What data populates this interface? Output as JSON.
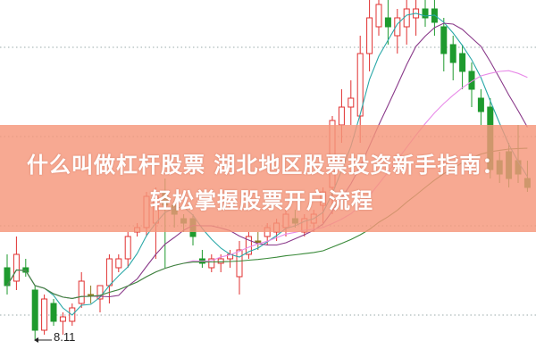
{
  "title_line1": "什么叫做杠杆股票 湖北地区股票投资新手指南：",
  "title_line2": "轻松掌握股票开户流程",
  "chart_data": {
    "type": "candlestick",
    "low_annotation": "8.11",
    "grid": "dotted horizontal",
    "colors": {
      "up": "#e03030",
      "down": "#1e9a2e",
      "flat": "#8a7a20",
      "banner": "#f5967a",
      "ma_lines": [
        "#2aa8a8",
        "#8a3a8a",
        "#e88ae8",
        "#3a8a3a"
      ]
    },
    "candles": [
      [
        8.91,
        8.71,
        9.06,
        8.61
      ],
      [
        8.76,
        9.06,
        9.26,
        8.66
      ],
      [
        8.91,
        8.86,
        9.01,
        8.81
      ],
      [
        8.66,
        8.21,
        8.71,
        8.11
      ],
      [
        8.21,
        8.56,
        8.61,
        8.16
      ],
      [
        8.51,
        8.31,
        8.56,
        8.26
      ],
      [
        8.31,
        8.36,
        8.41,
        8.16
      ],
      [
        8.31,
        8.46,
        8.51,
        8.26
      ],
      [
        8.51,
        8.76,
        8.86,
        8.46
      ],
      [
        8.61,
        8.61,
        8.71,
        8.51
      ],
      [
        8.56,
        8.71,
        8.71,
        8.41
      ],
      [
        8.71,
        9.01,
        9.06,
        8.51
      ],
      [
        8.91,
        9.01,
        9.06,
        8.86
      ],
      [
        9.01,
        9.26,
        9.31,
        8.91
      ],
      [
        9.31,
        9.36,
        9.41,
        9.26
      ],
      [
        9.36,
        9.71,
        9.76,
        9.26
      ],
      [
        9.41,
        9.71,
        9.81,
        9.01
      ],
      [
        9.76,
        9.61,
        9.91,
        8.91
      ],
      [
        9.61,
        9.51,
        9.66,
        9.36
      ],
      [
        9.46,
        9.41,
        9.51,
        9.31
      ],
      [
        9.46,
        9.26,
        9.51,
        9.16
      ],
      [
        9.01,
        8.96,
        9.11,
        8.91
      ],
      [
        8.91,
        9.01,
        9.06,
        8.86
      ],
      [
        8.96,
        9.01,
        9.06,
        8.86
      ],
      [
        9.01,
        9.06,
        9.11,
        8.91
      ],
      [
        8.81,
        9.11,
        9.21,
        8.61
      ],
      [
        9.06,
        9.26,
        9.31,
        9.01
      ],
      [
        9.21,
        9.21,
        9.31,
        9.11
      ],
      [
        9.26,
        9.36,
        9.41,
        9.16
      ],
      [
        9.31,
        9.41,
        9.46,
        9.21
      ],
      [
        9.36,
        9.51,
        9.56,
        9.26
      ],
      [
        9.46,
        9.41,
        9.56,
        9.36
      ],
      [
        9.31,
        9.46,
        9.51,
        9.26
      ],
      [
        9.41,
        9.51,
        9.56,
        9.31
      ],
      [
        9.61,
        9.76,
        9.81,
        9.41
      ],
      [
        9.81,
        10.56,
        10.61,
        9.51
      ],
      [
        10.51,
        10.71,
        10.91,
        10.31
      ],
      [
        10.71,
        10.81,
        11.01,
        10.51
      ],
      [
        10.61,
        11.31,
        11.51,
        10.31
      ],
      [
        11.31,
        11.71,
        11.91,
        11.11
      ],
      [
        11.61,
        11.86,
        11.91,
        11.51
      ],
      [
        11.71,
        11.61,
        11.91,
        11.41
      ],
      [
        11.51,
        11.71,
        11.81,
        11.31
      ],
      [
        11.61,
        11.81,
        11.91,
        11.41
      ],
      [
        11.71,
        11.81,
        11.91,
        11.51
      ],
      [
        11.81,
        11.71,
        11.91,
        11.61
      ],
      [
        11.81,
        11.66,
        11.91,
        11.51
      ],
      [
        11.61,
        11.31,
        11.71,
        11.11
      ],
      [
        11.41,
        11.21,
        11.51,
        11.01
      ],
      [
        11.31,
        11.11,
        11.41,
        10.91
      ],
      [
        11.11,
        10.91,
        11.21,
        10.71
      ],
      [
        10.81,
        10.66,
        10.91,
        10.51
      ],
      [
        10.71,
        10.01,
        10.81,
        9.91
      ],
      [
        10.11,
        9.96,
        10.21,
        9.86
      ],
      [
        10.21,
        9.91,
        10.31,
        9.81
      ],
      [
        10.11,
        9.96,
        10.51,
        9.86
      ],
      [
        9.91,
        9.81,
        10.11,
        9.76
      ]
    ],
    "candle_fields": [
      "open",
      "close",
      "high",
      "low"
    ],
    "moving_average_periods": [
      5,
      10,
      20,
      40
    ]
  }
}
